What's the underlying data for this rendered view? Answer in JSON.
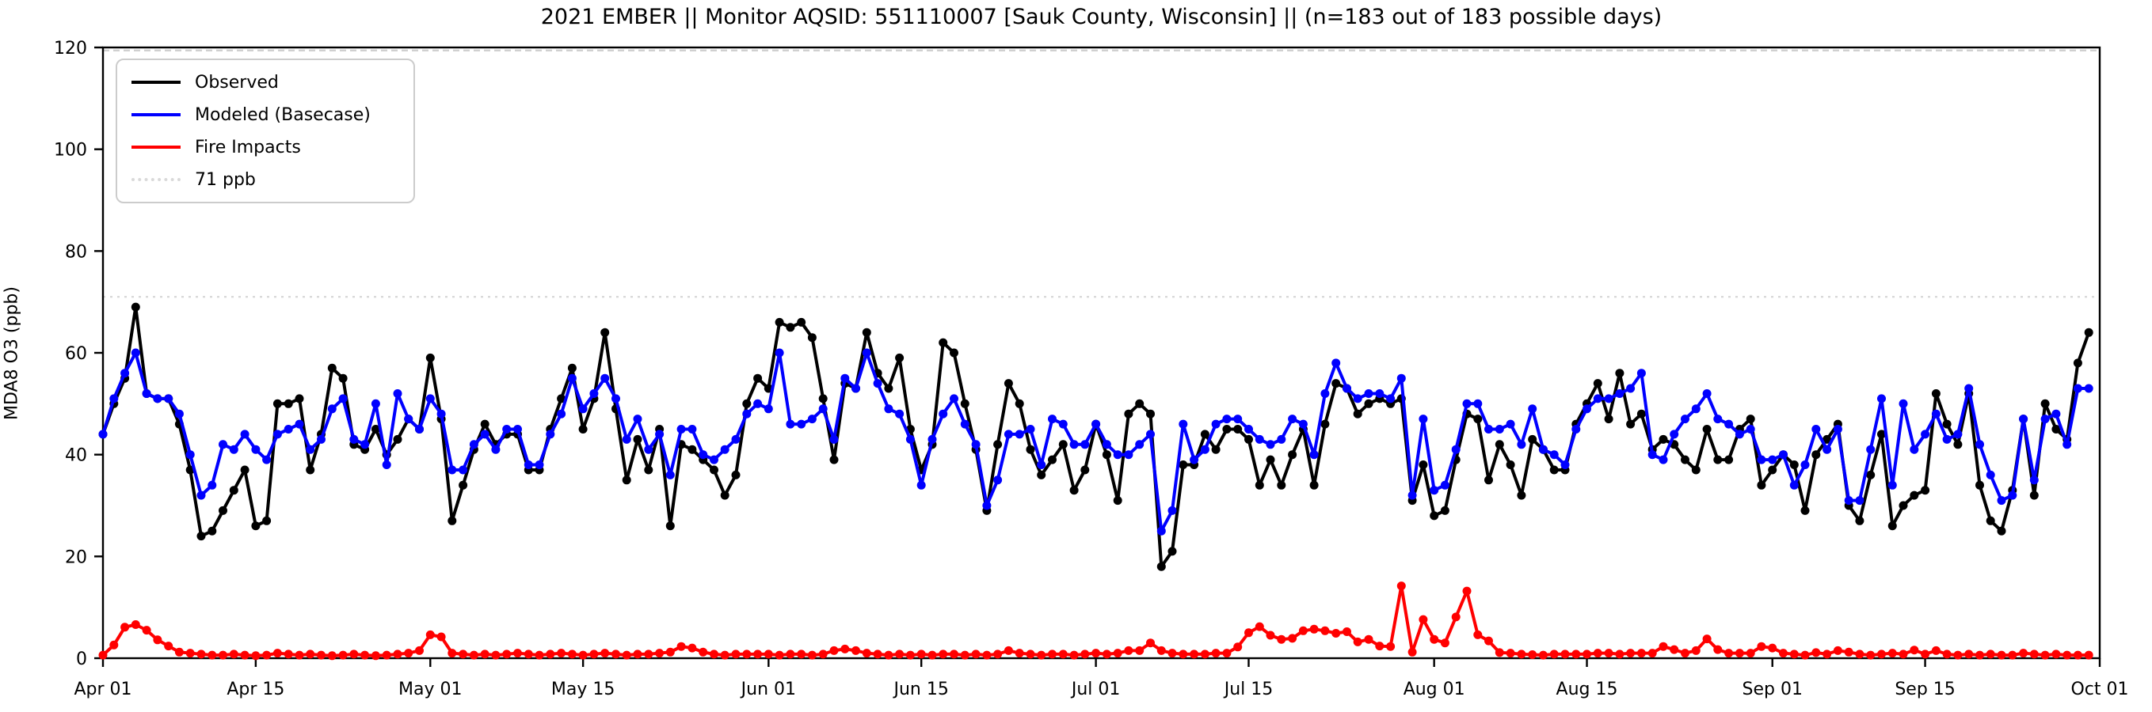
{
  "chart_data": {
    "type": "line",
    "title": "2021 EMBER || Monitor AQSID: 551110007 [Sauk County, Wisconsin] || (n=183 out of 183 possible days)",
    "ylabel": "MDA8 O3 (ppb)",
    "xlabel": "",
    "ylim": [
      0,
      120
    ],
    "yticks": [
      0,
      20,
      40,
      60,
      80,
      100,
      120
    ],
    "x_start_date": "Apr 01",
    "x_end_date": "Oct 01",
    "n_days": 183,
    "grid": false,
    "legend_position": "upper-left",
    "xticks": [
      {
        "label": "Apr 01",
        "day": 0
      },
      {
        "label": "Apr 15",
        "day": 14
      },
      {
        "label": "May 01",
        "day": 30
      },
      {
        "label": "May 15",
        "day": 44
      },
      {
        "label": "Jun 01",
        "day": 61
      },
      {
        "label": "Jun 15",
        "day": 75
      },
      {
        "label": "Jul 01",
        "day": 91
      },
      {
        "label": "Jul 15",
        "day": 105
      },
      {
        "label": "Aug 01",
        "day": 122
      },
      {
        "label": "Aug 15",
        "day": 136
      },
      {
        "label": "Sep 01",
        "day": 153
      },
      {
        "label": "Sep 15",
        "day": 167
      },
      {
        "label": "Oct 01",
        "day": 183
      }
    ],
    "reference_lines": [
      {
        "label": "71 ppb",
        "value": 71,
        "color": "#d9d9d9",
        "style": "dotted"
      },
      {
        "label": "",
        "value": 119.4,
        "color": "#d0d0d0",
        "style": "dashed"
      }
    ],
    "series": [
      {
        "name": "Observed",
        "color": "#000000",
        "marker": "circle",
        "values": [
          44,
          50,
          55,
          69,
          52,
          51,
          51,
          46,
          37,
          24,
          25,
          29,
          33,
          37,
          26,
          27,
          50,
          50,
          51,
          37,
          44,
          57,
          55,
          42,
          41,
          45,
          40,
          43,
          47,
          45,
          59,
          47,
          27,
          34,
          41,
          46,
          42,
          44,
          44,
          37,
          37,
          45,
          51,
          57,
          45,
          51,
          64,
          49,
          35,
          43,
          37,
          45,
          26,
          42,
          41,
          39,
          37,
          32,
          36,
          50,
          55,
          53,
          66,
          65,
          66,
          63,
          51,
          39,
          54,
          53,
          64,
          56,
          53,
          59,
          45,
          37,
          42,
          62,
          60,
          50,
          41,
          29,
          42,
          54,
          50,
          41,
          36,
          39,
          42,
          33,
          37,
          46,
          40,
          31,
          48,
          50,
          48,
          18,
          21,
          38,
          38,
          44,
          41,
          45,
          45,
          43,
          34,
          39,
          34,
          40,
          45,
          34,
          46,
          54,
          53,
          48,
          50,
          51,
          50,
          51,
          31,
          38,
          28,
          29,
          39,
          48,
          47,
          35,
          42,
          38,
          32,
          43,
          41,
          37,
          37,
          46,
          50,
          54,
          47,
          56,
          46,
          48,
          41,
          43,
          42,
          39,
          37,
          45,
          39,
          39,
          45,
          47,
          34,
          37,
          40,
          38,
          29,
          40,
          43,
          46,
          30,
          27,
          36,
          44,
          26,
          30,
          32,
          33,
          52,
          46,
          42,
          52,
          34,
          27,
          25,
          33,
          47,
          32,
          50,
          45,
          43,
          58,
          64
        ]
      },
      {
        "name": "Modeled (Basecase)",
        "color": "#0000ff",
        "marker": "circle",
        "values": [
          44,
          51,
          56,
          60,
          52,
          51,
          51,
          48,
          40,
          32,
          34,
          42,
          41,
          44,
          41,
          39,
          44,
          45,
          46,
          41,
          43,
          49,
          51,
          43,
          42,
          50,
          38,
          52,
          47,
          45,
          51,
          48,
          37,
          37,
          42,
          44,
          41,
          45,
          45,
          38,
          38,
          44,
          48,
          55,
          49,
          52,
          55,
          51,
          43,
          47,
          41,
          44,
          36,
          45,
          45,
          40,
          39,
          41,
          43,
          48,
          50,
          49,
          60,
          46,
          46,
          47,
          49,
          43,
          55,
          53,
          60,
          54,
          49,
          48,
          43,
          34,
          43,
          48,
          51,
          46,
          42,
          30,
          35,
          44,
          44,
          45,
          38,
          47,
          46,
          42,
          42,
          46,
          42,
          40,
          40,
          42,
          44,
          25,
          29,
          46,
          39,
          41,
          46,
          47,
          47,
          45,
          43,
          42,
          43,
          47,
          46,
          40,
          52,
          58,
          53,
          51,
          52,
          52,
          51,
          55,
          32,
          47,
          33,
          34,
          41,
          50,
          50,
          45,
          45,
          46,
          42,
          49,
          41,
          40,
          38,
          45,
          49,
          51,
          51,
          52,
          53,
          56,
          40,
          39,
          44,
          47,
          49,
          52,
          47,
          46,
          44,
          45,
          39,
          39,
          40,
          34,
          38,
          45,
          41,
          45,
          31,
          31,
          41,
          51,
          34,
          50,
          41,
          44,
          48,
          43,
          44,
          53,
          42,
          36,
          31,
          32,
          47,
          35,
          47,
          48,
          42,
          53,
          53
        ]
      },
      {
        "name": "Fire Impacts",
        "color": "#ff0000",
        "marker": "circle",
        "values": [
          0.6,
          2.6,
          6.1,
          6.6,
          5.5,
          3.6,
          2.4,
          1.2,
          1.0,
          0.8,
          0.6,
          0.6,
          0.8,
          0.6,
          0.5,
          0.6,
          1.0,
          0.8,
          0.6,
          0.8,
          0.6,
          0.5,
          0.6,
          0.8,
          0.6,
          0.5,
          0.6,
          0.8,
          1.0,
          1.5,
          4.6,
          4.2,
          1.0,
          0.8,
          0.6,
          0.8,
          0.6,
          0.8,
          1.0,
          0.8,
          0.6,
          0.8,
          1.0,
          0.8,
          0.6,
          0.8,
          1.0,
          0.8,
          0.6,
          0.8,
          0.8,
          1.0,
          1.2,
          2.3,
          2.0,
          1.2,
          0.8,
          0.6,
          0.8,
          0.8,
          0.8,
          0.8,
          0.6,
          0.8,
          0.8,
          0.6,
          0.8,
          1.5,
          1.8,
          1.5,
          1.0,
          0.8,
          0.6,
          0.8,
          0.6,
          0.8,
          0.6,
          0.8,
          0.8,
          0.6,
          0.8,
          0.6,
          0.8,
          1.5,
          1.0,
          0.8,
          0.6,
          0.8,
          0.8,
          0.6,
          0.8,
          1.0,
          0.8,
          1.0,
          1.5,
          1.5,
          3.0,
          1.5,
          1.0,
          0.8,
          0.8,
          0.8,
          1.0,
          1.0,
          2.2,
          5.0,
          6.2,
          4.5,
          3.7,
          3.9,
          5.4,
          5.7,
          5.4,
          4.9,
          5.2,
          3.2,
          3.7,
          2.4,
          2.3,
          14.2,
          1.2,
          7.6,
          3.7,
          3.0,
          8.1,
          13.2,
          4.6,
          3.4,
          1.1,
          1.0,
          0.8,
          0.7,
          0.6,
          0.8,
          0.8,
          0.8,
          0.8,
          1.0,
          1.0,
          0.8,
          1.0,
          1.0,
          1.0,
          2.3,
          1.7,
          1.0,
          1.5,
          3.8,
          1.7,
          1.0,
          1.0,
          1.0,
          2.3,
          2.0,
          1.0,
          0.8,
          0.6,
          1.1,
          0.8,
          1.5,
          1.2,
          0.8,
          0.6,
          0.8,
          1.0,
          0.8,
          1.6,
          0.8,
          1.5,
          0.8,
          0.6,
          0.8,
          0.6,
          0.8,
          0.6,
          0.6,
          1.0,
          0.8,
          0.6,
          0.8,
          0.6,
          0.6,
          0.6
        ]
      }
    ]
  }
}
